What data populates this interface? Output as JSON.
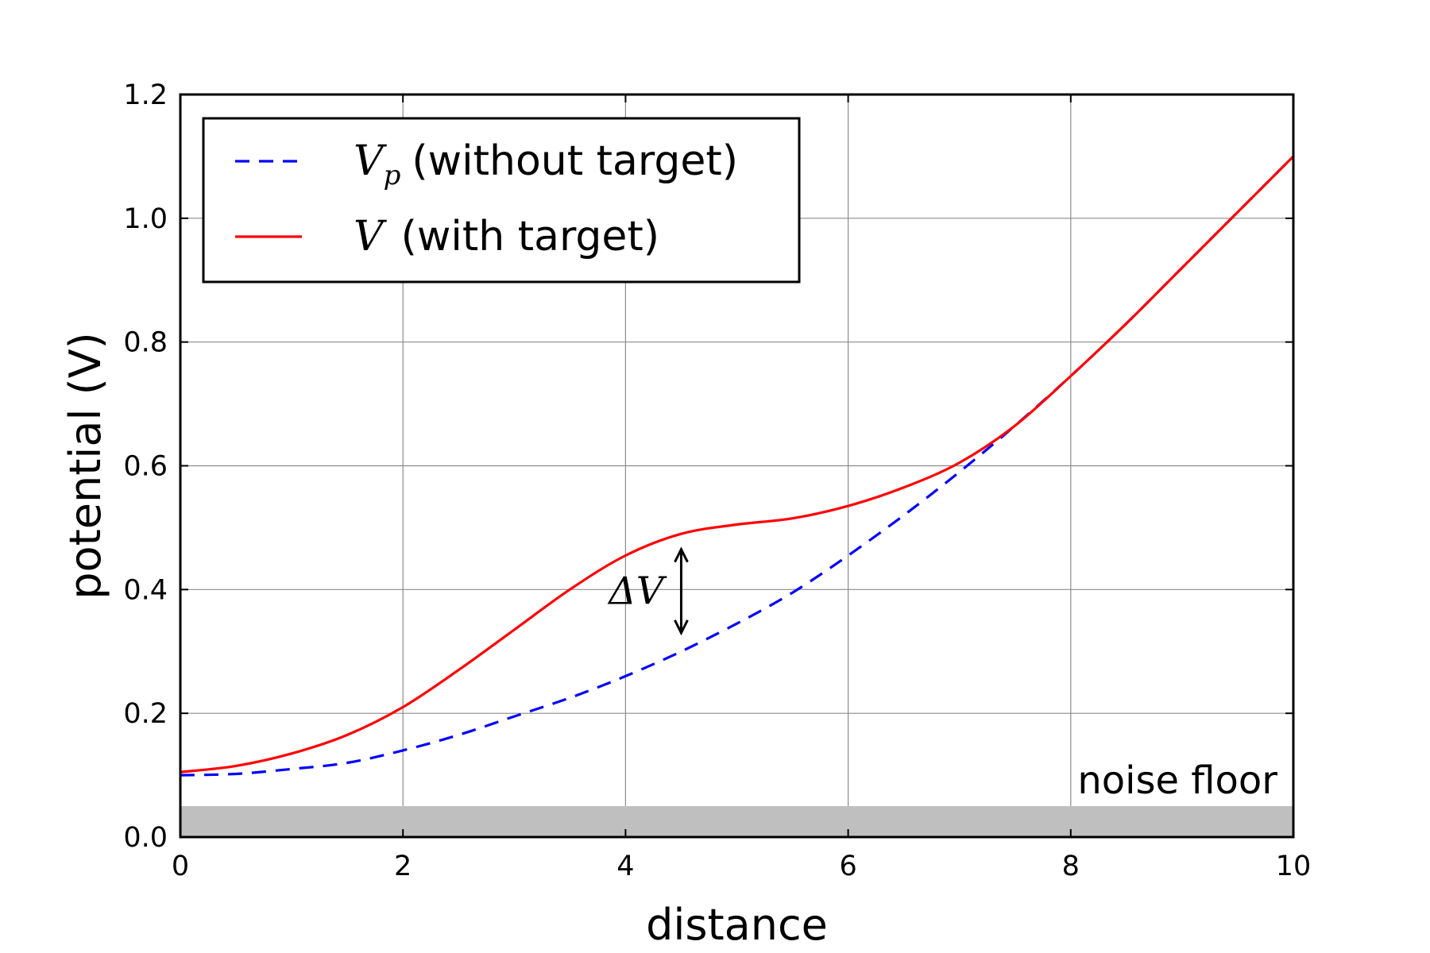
{
  "chart_data": {
    "type": "line",
    "xlabel": "distance",
    "ylabel": "potential (V)",
    "xlim": [
      0,
      10
    ],
    "ylim": [
      0,
      1.2
    ],
    "xticks": [
      0,
      2,
      4,
      6,
      8,
      10
    ],
    "yticks": [
      0.0,
      0.2,
      0.4,
      0.6,
      0.8,
      1.0,
      1.2
    ],
    "xtick_labels": [
      "0",
      "2",
      "4",
      "6",
      "8",
      "10"
    ],
    "ytick_labels": [
      "0.0",
      "0.2",
      "0.4",
      "0.6",
      "0.8",
      "1.0",
      "1.2"
    ],
    "grid": true,
    "legend_position": "top-left",
    "series": [
      {
        "name": "V_p (without target)",
        "legend_symbol": "V",
        "legend_subscript": "p",
        "legend_text": "(without target)",
        "style": "dashed",
        "color": "#0000ff",
        "x": [
          0,
          0.5,
          1,
          1.5,
          2,
          2.5,
          3,
          3.5,
          4,
          4.5,
          5,
          5.5,
          6,
          6.5,
          7,
          7.5,
          8,
          8.5,
          9,
          9.5,
          10
        ],
        "y": [
          0.1,
          0.102,
          0.11,
          0.12,
          0.14,
          0.165,
          0.195,
          0.225,
          0.26,
          0.3,
          0.345,
          0.395,
          0.455,
          0.52,
          0.59,
          0.665,
          0.745,
          0.83,
          0.92,
          1.01,
          1.1
        ]
      },
      {
        "name": "V (with target)",
        "legend_symbol": "V",
        "legend_subscript": "",
        "legend_text": "(with target)",
        "style": "solid",
        "color": "#ff0000",
        "x": [
          0,
          0.5,
          1,
          1.5,
          2,
          2.5,
          3,
          3.5,
          4,
          4.5,
          5,
          5.5,
          6,
          6.5,
          7,
          7.5,
          8,
          8.5,
          9,
          9.5,
          10
        ],
        "y": [
          0.105,
          0.115,
          0.135,
          0.165,
          0.21,
          0.27,
          0.335,
          0.4,
          0.455,
          0.49,
          0.505,
          0.515,
          0.535,
          0.565,
          0.605,
          0.665,
          0.745,
          0.83,
          0.92,
          1.01,
          1.1
        ]
      }
    ],
    "noise_floor": {
      "label": "noise floor",
      "y": 0.05,
      "color": "#bfbfbf"
    },
    "annotations": [
      {
        "type": "double-arrow",
        "label_symbol": "ΔV",
        "x": 4.5,
        "y_from": 0.33,
        "y_to": 0.465
      }
    ]
  }
}
